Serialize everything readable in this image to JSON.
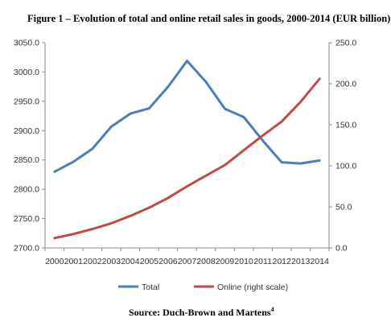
{
  "chart_data": {
    "type": "line",
    "title": "Figure 1 – Evolution of total and online retail sales in goods, 2000-2014 (EUR billion)",
    "categories": [
      "2000",
      "2001",
      "2002",
      "2003",
      "2004",
      "2005",
      "2006",
      "2007",
      "2008",
      "2009",
      "2010",
      "2011",
      "2012",
      "2013",
      "2014"
    ],
    "y_left": {
      "ylim": [
        2700,
        3050
      ],
      "ticks": [
        "3050.0",
        "3000.0",
        "2950.0",
        "2900.0",
        "2850.0",
        "2800.0",
        "2750.0",
        "2700.0"
      ]
    },
    "y_right": {
      "ylim": [
        0,
        250
      ],
      "ticks": [
        "250.0",
        "200.0",
        "150.0",
        "100.0",
        "50.0",
        "0.0"
      ]
    },
    "series": [
      {
        "name": "Total",
        "axis": "left",
        "color": "#4a7ebb",
        "values": [
          2830,
          2847,
          2869,
          2907,
          2929,
          2938,
          2975,
          3019,
          2983,
          2937,
          2923,
          2883,
          2846,
          2844,
          2849
        ]
      },
      {
        "name": "Online (right scale)",
        "axis": "right",
        "color": "#be4b48",
        "values": [
          12,
          17,
          23,
          30,
          39,
          49,
          61,
          75,
          88,
          101,
          119,
          137,
          154,
          178,
          206
        ]
      }
    ],
    "legend_position": "bottom",
    "grid": false,
    "source": {
      "text": "Source: Duch-Brown and Martens",
      "superscript": "4"
    }
  }
}
